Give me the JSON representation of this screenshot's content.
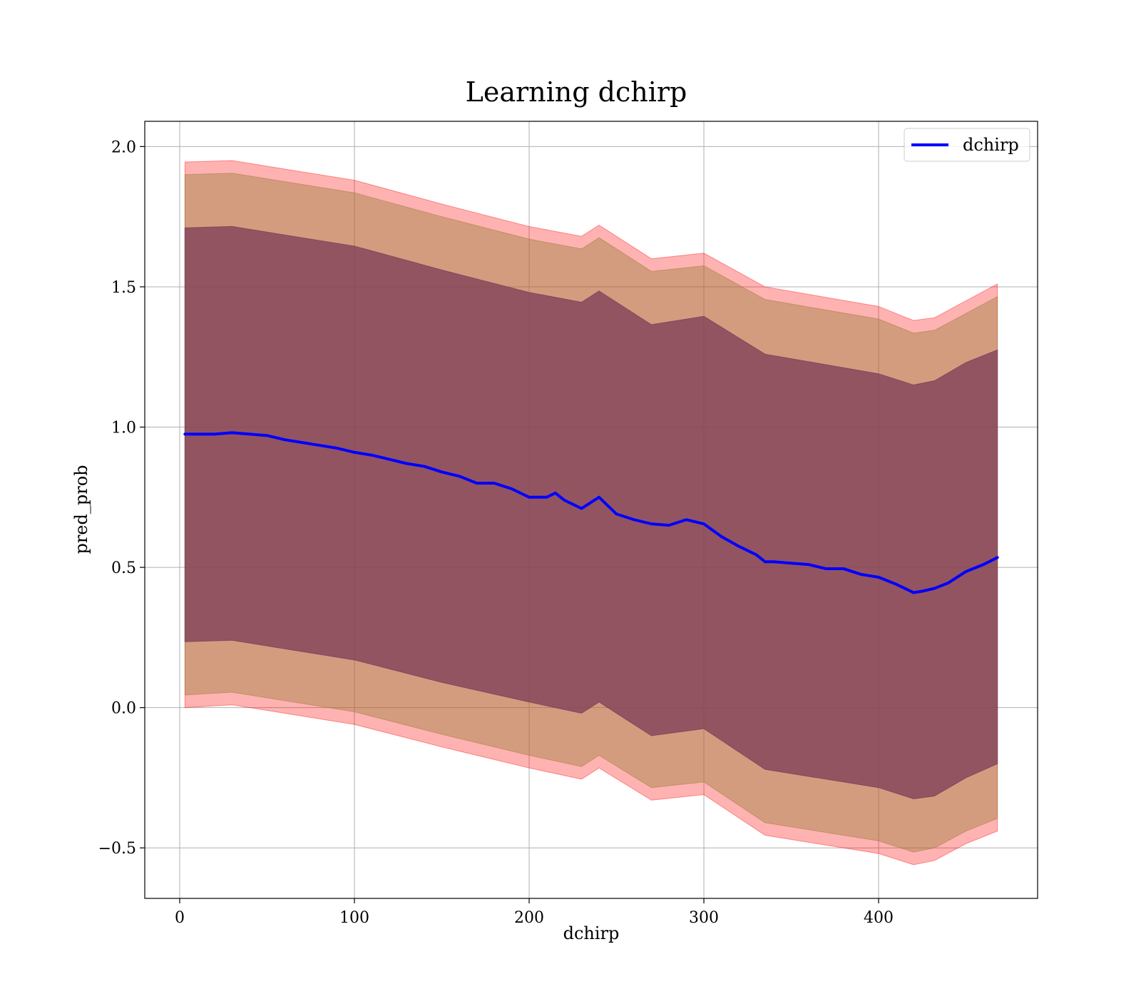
{
  "chart_data": {
    "type": "line",
    "title": "Learning dchirp",
    "xlabel": "dchirp",
    "ylabel": "pred_prob",
    "xlim": [
      -20,
      491
    ],
    "ylim": [
      -0.68,
      2.09
    ],
    "xticks": [
      0,
      100,
      200,
      300,
      400
    ],
    "yticks": [
      -0.5,
      0.0,
      0.5,
      1.0,
      1.5,
      2.0
    ],
    "xtick_labels": [
      "0",
      "100",
      "200",
      "300",
      "400"
    ],
    "ytick_labels": [
      "−0.5",
      "0.0",
      "0.5",
      "1.0",
      "1.5",
      "2.0"
    ],
    "grid": true,
    "legend": {
      "position": "top-right",
      "entries": [
        "dchirp"
      ]
    },
    "series": [
      {
        "name": "dchirp",
        "color": "#0000ff",
        "x": [
          3,
          10,
          20,
          30,
          40,
          50,
          60,
          70,
          80,
          90,
          100,
          110,
          120,
          130,
          140,
          150,
          160,
          170,
          180,
          190,
          200,
          210,
          215,
          220,
          230,
          240,
          250,
          260,
          270,
          280,
          290,
          300,
          310,
          320,
          330,
          335,
          340,
          350,
          360,
          370,
          380,
          390,
          400,
          410,
          415,
          420,
          425,
          432,
          440,
          450,
          460,
          468
        ],
        "y": [
          0.975,
          0.975,
          0.975,
          0.98,
          0.975,
          0.97,
          0.955,
          0.945,
          0.935,
          0.925,
          0.91,
          0.9,
          0.885,
          0.87,
          0.86,
          0.84,
          0.825,
          0.8,
          0.8,
          0.78,
          0.75,
          0.75,
          0.765,
          0.74,
          0.71,
          0.75,
          0.69,
          0.67,
          0.655,
          0.65,
          0.67,
          0.655,
          0.61,
          0.575,
          0.545,
          0.52,
          0.52,
          0.515,
          0.51,
          0.495,
          0.495,
          0.475,
          0.465,
          0.44,
          0.425,
          0.41,
          0.415,
          0.425,
          0.445,
          0.485,
          0.51,
          0.535
        ]
      }
    ],
    "bands": [
      {
        "color": "#ff0000",
        "opacity": 0.3,
        "x": [
          3,
          30,
          100,
          150,
          200,
          230,
          240,
          270,
          300,
          335,
          400,
          420,
          432,
          450,
          468
        ],
        "upper": [
          1.945,
          1.95,
          1.88,
          1.795,
          1.715,
          1.68,
          1.72,
          1.6,
          1.62,
          1.5,
          1.43,
          1.38,
          1.39,
          1.45,
          1.51
        ],
        "lower": [
          0.0,
          0.01,
          -0.06,
          -0.14,
          -0.215,
          -0.255,
          -0.215,
          -0.33,
          -0.31,
          -0.455,
          -0.52,
          -0.56,
          -0.545,
          -0.485,
          -0.44
        ]
      },
      {
        "color": "#a08040",
        "opacity": 0.45,
        "x": [
          3,
          30,
          100,
          150,
          200,
          230,
          240,
          270,
          300,
          335,
          400,
          420,
          432,
          450,
          468
        ],
        "upper": [
          1.9,
          1.905,
          1.835,
          1.75,
          1.67,
          1.635,
          1.675,
          1.555,
          1.575,
          1.455,
          1.385,
          1.335,
          1.345,
          1.405,
          1.465
        ],
        "lower": [
          0.045,
          0.055,
          -0.015,
          -0.095,
          -0.17,
          -0.21,
          -0.17,
          -0.285,
          -0.265,
          -0.41,
          -0.475,
          -0.515,
          -0.5,
          -0.44,
          -0.395
        ]
      },
      {
        "color": "#80405a",
        "opacity": 0.78,
        "x": [
          3,
          30,
          100,
          150,
          200,
          230,
          240,
          270,
          300,
          335,
          400,
          420,
          432,
          450,
          468
        ],
        "upper": [
          1.71,
          1.715,
          1.645,
          1.56,
          1.48,
          1.445,
          1.485,
          1.365,
          1.395,
          1.26,
          1.19,
          1.15,
          1.165,
          1.23,
          1.275
        ],
        "lower": [
          0.235,
          0.24,
          0.17,
          0.09,
          0.02,
          -0.02,
          0.02,
          -0.1,
          -0.075,
          -0.22,
          -0.285,
          -0.325,
          -0.315,
          -0.25,
          -0.2
        ]
      }
    ]
  }
}
